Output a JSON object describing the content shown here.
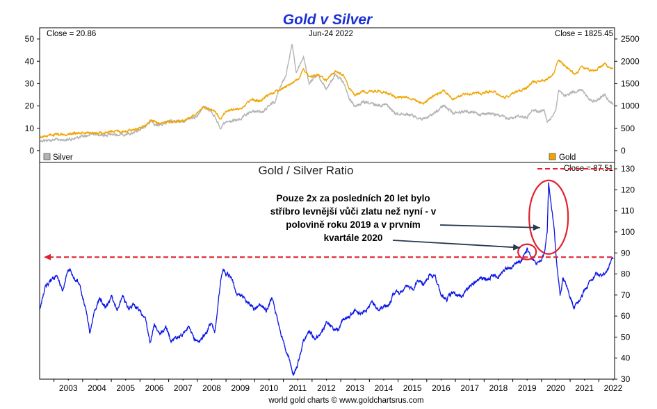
{
  "colors": {
    "title": "#1a2fd6",
    "silver": "#b3b3b3",
    "gold": "#f0a500",
    "ratio": "#0a14e6",
    "annotation": "#e0202e",
    "arrow": "#263a4e"
  },
  "chart_data": [
    {
      "type": "line",
      "title": "Gold v Silver",
      "header": {
        "left": "Close = 20.86",
        "center": "Jun-24  2022",
        "right": "Close = 1825.45"
      },
      "y_left": {
        "ylim": [
          -5,
          55
        ],
        "ticks": [
          "0",
          "10",
          "20",
          "30",
          "40",
          "50"
        ]
      },
      "y_right": {
        "ylim": [
          -250,
          2750
        ],
        "ticks": [
          "0",
          "500",
          "1000",
          "1500",
          "2000",
          "2500"
        ]
      },
      "series": [
        {
          "name": "Silver",
          "axis": "left",
          "points": [
            [
              2002.5,
              4.6
            ],
            [
              2003.0,
              4.8
            ],
            [
              2003.5,
              5.0
            ],
            [
              2004.0,
              6.2
            ],
            [
              2004.4,
              7.6
            ],
            [
              2004.8,
              7.0
            ],
            [
              2005.3,
              7.2
            ],
            [
              2005.8,
              7.8
            ],
            [
              2006.1,
              9.8
            ],
            [
              2006.4,
              13.5
            ],
            [
              2006.6,
              11.0
            ],
            [
              2007.0,
              13.0
            ],
            [
              2007.5,
              13.2
            ],
            [
              2008.0,
              15.8
            ],
            [
              2008.2,
              20.0
            ],
            [
              2008.5,
              17.5
            ],
            [
              2008.8,
              10.5
            ],
            [
              2009.0,
              12.5
            ],
            [
              2009.5,
              14.0
            ],
            [
              2009.9,
              17.5
            ],
            [
              2010.3,
              17.5
            ],
            [
              2010.7,
              22.0
            ],
            [
              2010.9,
              29.0
            ],
            [
              2011.1,
              34.0
            ],
            [
              2011.3,
              48.0
            ],
            [
              2011.45,
              35.0
            ],
            [
              2011.7,
              42.0
            ],
            [
              2011.9,
              30.0
            ],
            [
              2012.2,
              34.0
            ],
            [
              2012.5,
              27.5
            ],
            [
              2012.8,
              34.0
            ],
            [
              2013.1,
              30.5
            ],
            [
              2013.3,
              23.0
            ],
            [
              2013.5,
              20.0
            ],
            [
              2013.8,
              21.5
            ],
            [
              2014.2,
              20.5
            ],
            [
              2014.6,
              20.5
            ],
            [
              2014.9,
              16.5
            ],
            [
              2015.3,
              16.5
            ],
            [
              2015.9,
              14.0
            ],
            [
              2016.3,
              17.0
            ],
            [
              2016.6,
              20.0
            ],
            [
              2016.9,
              17.0
            ],
            [
              2017.3,
              17.5
            ],
            [
              2017.8,
              16.5
            ],
            [
              2018.3,
              16.5
            ],
            [
              2018.8,
              14.5
            ],
            [
              2019.2,
              15.5
            ],
            [
              2019.5,
              15.0
            ],
            [
              2019.7,
              18.0
            ],
            [
              2019.9,
              17.5
            ],
            [
              2020.1,
              18.0
            ],
            [
              2020.2,
              12.5
            ],
            [
              2020.35,
              15.0
            ],
            [
              2020.5,
              18.5
            ],
            [
              2020.6,
              27.0
            ],
            [
              2020.8,
              24.0
            ],
            [
              2021.1,
              26.5
            ],
            [
              2021.4,
              27.0
            ],
            [
              2021.7,
              23.0
            ],
            [
              2021.9,
              22.0
            ],
            [
              2022.2,
              25.0
            ],
            [
              2022.35,
              22.5
            ],
            [
              2022.5,
              20.9
            ]
          ]
        },
        {
          "name": "Gold",
          "axis": "right",
          "points": [
            [
              2002.5,
              310
            ],
            [
              2003.0,
              355
            ],
            [
              2003.5,
              370
            ],
            [
              2004.0,
              405
            ],
            [
              2004.5,
              400
            ],
            [
              2005.0,
              430
            ],
            [
              2005.5,
              430
            ],
            [
              2005.9,
              500
            ],
            [
              2006.2,
              560
            ],
            [
              2006.4,
              700
            ],
            [
              2006.7,
              600
            ],
            [
              2007.0,
              650
            ],
            [
              2007.5,
              670
            ],
            [
              2007.9,
              800
            ],
            [
              2008.2,
              960
            ],
            [
              2008.6,
              880
            ],
            [
              2008.8,
              720
            ],
            [
              2009.0,
              880
            ],
            [
              2009.5,
              940
            ],
            [
              2009.9,
              1150
            ],
            [
              2010.2,
              1100
            ],
            [
              2010.5,
              1250
            ],
            [
              2010.9,
              1380
            ],
            [
              2011.3,
              1500
            ],
            [
              2011.55,
              1600
            ],
            [
              2011.7,
              1850
            ],
            [
              2011.9,
              1650
            ],
            [
              2012.2,
              1700
            ],
            [
              2012.5,
              1580
            ],
            [
              2012.8,
              1780
            ],
            [
              2013.1,
              1680
            ],
            [
              2013.3,
              1400
            ],
            [
              2013.5,
              1250
            ],
            [
              2013.8,
              1320
            ],
            [
              2014.2,
              1330
            ],
            [
              2014.6,
              1300
            ],
            [
              2014.9,
              1200
            ],
            [
              2015.3,
              1200
            ],
            [
              2015.9,
              1060
            ],
            [
              2016.3,
              1250
            ],
            [
              2016.6,
              1340
            ],
            [
              2016.9,
              1150
            ],
            [
              2017.3,
              1250
            ],
            [
              2017.8,
              1280
            ],
            [
              2018.3,
              1330
            ],
            [
              2018.7,
              1190
            ],
            [
              2019.1,
              1300
            ],
            [
              2019.5,
              1420
            ],
            [
              2019.7,
              1530
            ],
            [
              2020.0,
              1550
            ],
            [
              2020.2,
              1600
            ],
            [
              2020.4,
              1700
            ],
            [
              2020.6,
              2050
            ],
            [
              2020.8,
              1900
            ],
            [
              2021.2,
              1700
            ],
            [
              2021.4,
              1880
            ],
            [
              2021.7,
              1780
            ],
            [
              2021.9,
              1800
            ],
            [
              2022.2,
              1950
            ],
            [
              2022.35,
              1850
            ],
            [
              2022.5,
              1825
            ]
          ]
        }
      ],
      "legend": {
        "silver": "Silver",
        "gold": "Gold"
      }
    },
    {
      "type": "line",
      "title": "Gold  /  Silver Ratio",
      "header": {
        "right": "Close = 87.51"
      },
      "y_right": {
        "ylim": [
          30,
          133
        ],
        "ticks": [
          "30",
          "40",
          "50",
          "60",
          "70",
          "80",
          "90",
          "100",
          "110",
          "120",
          "130"
        ]
      },
      "x_ticks": [
        "2003",
        "2004",
        "2005",
        "2006",
        "2007",
        "2008",
        "2009",
        "2010",
        "2011",
        "2012",
        "2013",
        "2014",
        "2015",
        "2016",
        "2017",
        "2018",
        "2019",
        "2020",
        "2021",
        "2022"
      ],
      "series": [
        {
          "name": "Gold / Silver Ratio",
          "points": [
            [
              2002.5,
              63
            ],
            [
              2002.7,
              74
            ],
            [
              2002.9,
              77
            ],
            [
              2003.1,
              79
            ],
            [
              2003.3,
              72
            ],
            [
              2003.5,
              83
            ],
            [
              2003.7,
              78
            ],
            [
              2003.9,
              75
            ],
            [
              2004.1,
              64
            ],
            [
              2004.25,
              52
            ],
            [
              2004.4,
              62
            ],
            [
              2004.6,
              68
            ],
            [
              2004.8,
              64
            ],
            [
              2005.0,
              69
            ],
            [
              2005.2,
              63
            ],
            [
              2005.4,
              70
            ],
            [
              2005.6,
              63
            ],
            [
              2005.8,
              66
            ],
            [
              2006.0,
              62
            ],
            [
              2006.2,
              58
            ],
            [
              2006.35,
              47
            ],
            [
              2006.5,
              56
            ],
            [
              2006.7,
              52
            ],
            [
              2006.9,
              55
            ],
            [
              2007.1,
              48
            ],
            [
              2007.3,
              50
            ],
            [
              2007.5,
              51
            ],
            [
              2007.7,
              55
            ],
            [
              2007.9,
              49
            ],
            [
              2008.1,
              48
            ],
            [
              2008.3,
              52
            ],
            [
              2008.5,
              57
            ],
            [
              2008.6,
              52
            ],
            [
              2008.7,
              62
            ],
            [
              2008.8,
              75
            ],
            [
              2008.9,
              83
            ],
            [
              2009.0,
              80
            ],
            [
              2009.2,
              78
            ],
            [
              2009.4,
              70
            ],
            [
              2009.6,
              69
            ],
            [
              2009.8,
              66
            ],
            [
              2010.0,
              63
            ],
            [
              2010.2,
              66
            ],
            [
              2010.4,
              63
            ],
            [
              2010.6,
              68
            ],
            [
              2010.8,
              58
            ],
            [
              2011.0,
              47
            ],
            [
              2011.2,
              40
            ],
            [
              2011.35,
              32
            ],
            [
              2011.5,
              37
            ],
            [
              2011.7,
              48
            ],
            [
              2011.9,
              53
            ],
            [
              2012.1,
              49
            ],
            [
              2012.3,
              51
            ],
            [
              2012.5,
              57
            ],
            [
              2012.7,
              54
            ],
            [
              2012.9,
              53
            ],
            [
              2013.1,
              58
            ],
            [
              2013.3,
              60
            ],
            [
              2013.5,
              63
            ],
            [
              2013.7,
              61
            ],
            [
              2013.9,
              63
            ],
            [
              2014.1,
              66
            ],
            [
              2014.3,
              63
            ],
            [
              2014.5,
              65
            ],
            [
              2014.7,
              66
            ],
            [
              2014.9,
              72
            ],
            [
              2015.1,
              71
            ],
            [
              2015.3,
              75
            ],
            [
              2015.5,
              73
            ],
            [
              2015.7,
              77
            ],
            [
              2015.9,
              75
            ],
            [
              2016.1,
              80
            ],
            [
              2016.3,
              78
            ],
            [
              2016.5,
              70
            ],
            [
              2016.7,
              68
            ],
            [
              2016.9,
              71
            ],
            [
              2017.1,
              69
            ],
            [
              2017.3,
              71
            ],
            [
              2017.5,
              74
            ],
            [
              2017.7,
              76
            ],
            [
              2017.9,
              78
            ],
            [
              2018.1,
              77
            ],
            [
              2018.3,
              80
            ],
            [
              2018.5,
              79
            ],
            [
              2018.7,
              82
            ],
            [
              2018.9,
              83
            ],
            [
              2019.1,
              85
            ],
            [
              2019.3,
              86
            ],
            [
              2019.5,
              92
            ],
            [
              2019.6,
              88
            ],
            [
              2019.8,
              85
            ],
            [
              2019.95,
              86
            ],
            [
              2020.1,
              90
            ],
            [
              2020.2,
              100
            ],
            [
              2020.25,
              123
            ],
            [
              2020.35,
              112
            ],
            [
              2020.45,
              100
            ],
            [
              2020.55,
              83
            ],
            [
              2020.65,
              70
            ],
            [
              2020.75,
              78
            ],
            [
              2020.9,
              74
            ],
            [
              2021.0,
              69
            ],
            [
              2021.15,
              64
            ],
            [
              2021.3,
              67
            ],
            [
              2021.5,
              72
            ],
            [
              2021.7,
              76
            ],
            [
              2021.9,
              80
            ],
            [
              2022.1,
              78
            ],
            [
              2022.25,
              80
            ],
            [
              2022.4,
              85
            ],
            [
              2022.5,
              87.5
            ]
          ]
        }
      ],
      "reference_line": {
        "value": 88
      },
      "top_reference_line": {
        "value": 130
      }
    }
  ],
  "annotation": {
    "lines": [
      "Pouze 2x za posledních 20 let bylo",
      "stříbro levnější vůči zlatu než nyní - v",
      "polovině roku 2019 a v prvním",
      "kvartále 2020"
    ]
  },
  "credit": "world gold charts © www.goldchartsrus.com"
}
